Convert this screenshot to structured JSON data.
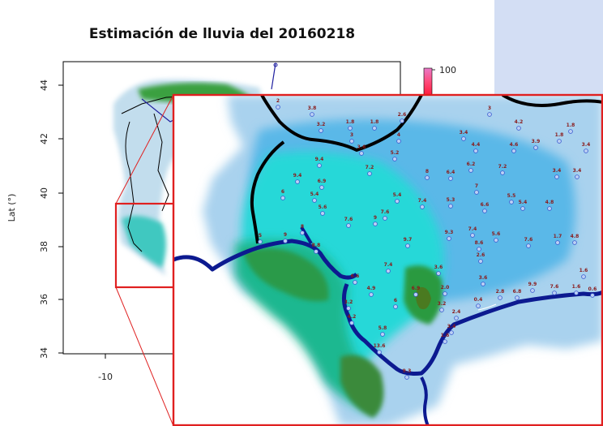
{
  "title": "Estimación de lluvia del 20160218",
  "axes": {
    "ylabel": "Lat (°)",
    "yticks": [
      "44",
      "42",
      "40",
      "38",
      "36",
      "34"
    ],
    "xticks": [
      "-10"
    ]
  },
  "legend": {
    "max_label": "100"
  },
  "colors": {
    "border": "#000000",
    "river": "#1c1ca8",
    "highlight": "#e02020",
    "station_label": "#8a1a1a",
    "station_marker": "#3a5ad0"
  },
  "stations": [
    {
      "v": "2",
      "x": 343,
      "y": 126
    },
    {
      "v": "3.8",
      "x": 385,
      "y": 135
    },
    {
      "v": "3.2",
      "x": 396,
      "y": 155
    },
    {
      "v": "1.8",
      "x": 432,
      "y": 152
    },
    {
      "v": "1.8",
      "x": 462,
      "y": 152
    },
    {
      "v": "2.6",
      "x": 496,
      "y": 143
    },
    {
      "v": "3",
      "x": 434,
      "y": 168
    },
    {
      "v": "3.6",
      "x": 446,
      "y": 183
    },
    {
      "v": "5.2",
      "x": 487,
      "y": 190
    },
    {
      "v": "4",
      "x": 492,
      "y": 168
    },
    {
      "v": "3",
      "x": 604,
      "y": 135
    },
    {
      "v": "4.2",
      "x": 640,
      "y": 152
    },
    {
      "v": "1.8",
      "x": 704,
      "y": 156
    },
    {
      "v": "1.8",
      "x": 690,
      "y": 168
    },
    {
      "v": "3.4",
      "x": 572,
      "y": 165
    },
    {
      "v": "4.4",
      "x": 587,
      "y": 180
    },
    {
      "v": "4.6",
      "x": 634,
      "y": 180
    },
    {
      "v": "3.9",
      "x": 661,
      "y": 176
    },
    {
      "v": "3.4",
      "x": 723,
      "y": 180
    },
    {
      "v": "9.4",
      "x": 394,
      "y": 198
    },
    {
      "v": "7.2",
      "x": 456,
      "y": 208
    },
    {
      "v": "8",
      "x": 527,
      "y": 213
    },
    {
      "v": "6.4",
      "x": 556,
      "y": 214
    },
    {
      "v": "6.2",
      "x": 581,
      "y": 204
    },
    {
      "v": "7.2",
      "x": 620,
      "y": 207
    },
    {
      "v": "3.4",
      "x": 687,
      "y": 212
    },
    {
      "v": "3.4",
      "x": 712,
      "y": 212
    },
    {
      "v": "9.4",
      "x": 367,
      "y": 218
    },
    {
      "v": "6.9",
      "x": 397,
      "y": 225
    },
    {
      "v": "7",
      "x": 588,
      "y": 231
    },
    {
      "v": "6",
      "x": 349,
      "y": 238
    },
    {
      "v": "5.4",
      "x": 388,
      "y": 241
    },
    {
      "v": "5.4",
      "x": 490,
      "y": 242
    },
    {
      "v": "7.4",
      "x": 521,
      "y": 249
    },
    {
      "v": "5.3",
      "x": 556,
      "y": 248
    },
    {
      "v": "5.5",
      "x": 631,
      "y": 243
    },
    {
      "v": "5.4",
      "x": 645,
      "y": 251
    },
    {
      "v": "4.8",
      "x": 678,
      "y": 251
    },
    {
      "v": "6.6",
      "x": 598,
      "y": 254
    },
    {
      "v": "5.6",
      "x": 398,
      "y": 257
    },
    {
      "v": "7.6",
      "x": 475,
      "y": 263
    },
    {
      "v": "7.6",
      "x": 430,
      "y": 272
    },
    {
      "v": "9",
      "x": 463,
      "y": 270
    },
    {
      "v": "8",
      "x": 373,
      "y": 281
    },
    {
      "v": "9",
      "x": 352,
      "y": 291
    },
    {
      "v": "5",
      "x": 321,
      "y": 292
    },
    {
      "v": "7.4",
      "x": 583,
      "y": 284
    },
    {
      "v": "9.3",
      "x": 554,
      "y": 288
    },
    {
      "v": "5.6",
      "x": 612,
      "y": 290
    },
    {
      "v": "7.6",
      "x": 652,
      "y": 297
    },
    {
      "v": "1.7",
      "x": 688,
      "y": 293
    },
    {
      "v": "4.8",
      "x": 709,
      "y": 293
    },
    {
      "v": "8.6",
      "x": 591,
      "y": 301
    },
    {
      "v": "9.7",
      "x": 503,
      "y": 297
    },
    {
      "v": "2.6",
      "x": 593,
      "y": 316
    },
    {
      "v": "8.8",
      "x": 390,
      "y": 304
    },
    {
      "v": "7.4",
      "x": 479,
      "y": 328
    },
    {
      "v": "3.6",
      "x": 541,
      "y": 331
    },
    {
      "v": "1.6",
      "x": 720,
      "y": 335
    },
    {
      "v": "6.6",
      "x": 438,
      "y": 342
    },
    {
      "v": "3.6",
      "x": 596,
      "y": 344
    },
    {
      "v": "4.9",
      "x": 458,
      "y": 357
    },
    {
      "v": "6.9",
      "x": 513,
      "y": 357
    },
    {
      "v": "2.0",
      "x": 549,
      "y": 356
    },
    {
      "v": "9.9",
      "x": 657,
      "y": 352
    },
    {
      "v": "7.6",
      "x": 684,
      "y": 355
    },
    {
      "v": "1.6",
      "x": 711,
      "y": 355
    },
    {
      "v": "0.6",
      "x": 731,
      "y": 358
    },
    {
      "v": "2.8",
      "x": 617,
      "y": 361
    },
    {
      "v": "6.8",
      "x": 638,
      "y": 361
    },
    {
      "v": "0.4",
      "x": 590,
      "y": 371
    },
    {
      "v": "3.2",
      "x": 545,
      "y": 376
    },
    {
      "v": "6",
      "x": 488,
      "y": 372
    },
    {
      "v": "3.2",
      "x": 430,
      "y": 374
    },
    {
      "v": "2.4",
      "x": 563,
      "y": 386
    },
    {
      "v": "4.2",
      "x": 434,
      "y": 392
    },
    {
      "v": "5.8",
      "x": 472,
      "y": 406
    },
    {
      "v": "3.4",
      "x": 557,
      "y": 404
    },
    {
      "v": "1.6",
      "x": 549,
      "y": 415
    },
    {
      "v": "13.6",
      "x": 468,
      "y": 428
    },
    {
      "v": "9.3",
      "x": 502,
      "y": 459
    }
  ]
}
